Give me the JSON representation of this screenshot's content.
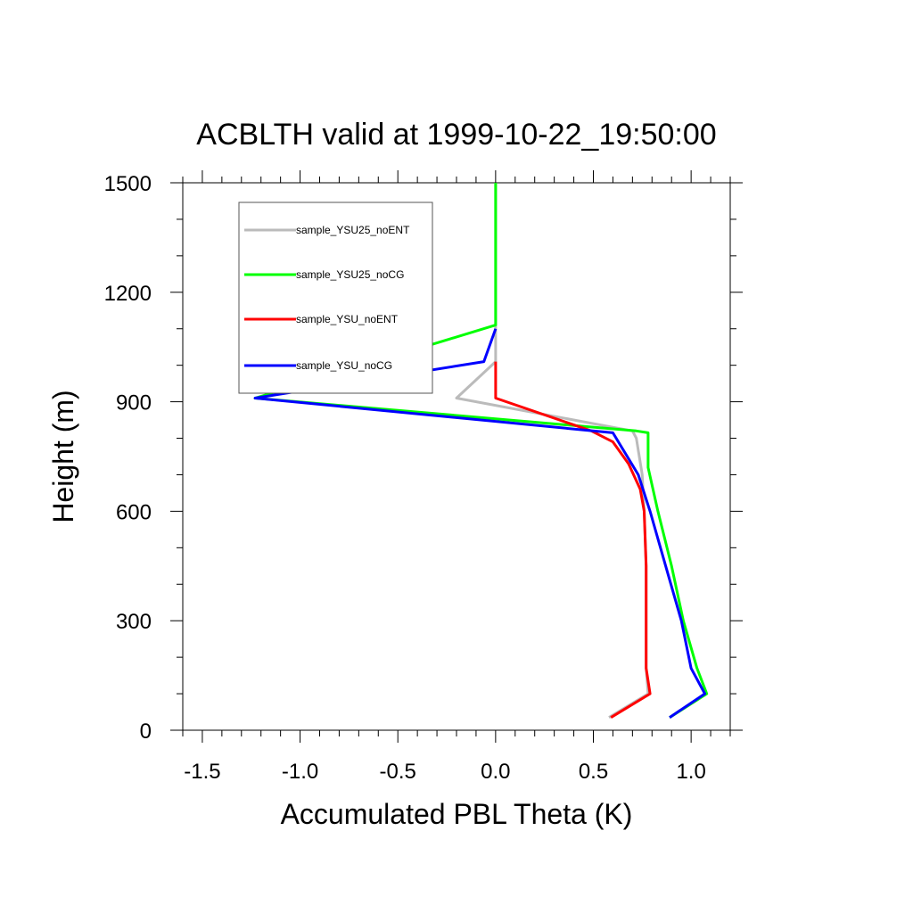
{
  "chart_data": {
    "type": "line",
    "title": "ACBLTH valid at 1999-10-22_19:50:00",
    "xlabel": "Accumulated PBL Theta (K)",
    "ylabel": "Height (m)",
    "xlim": [
      -1.6,
      1.2
    ],
    "ylim": [
      0,
      1500
    ],
    "xticks": [
      -1.5,
      -1.0,
      -0.5,
      0.0,
      0.5,
      1.0
    ],
    "xtick_labels": [
      "-1.5",
      "-1.0",
      "-0.5",
      "0.0",
      "0.5",
      "1.0"
    ],
    "yticks": [
      0,
      300,
      600,
      900,
      1200,
      1500
    ],
    "ytick_labels": [
      "0",
      "300",
      "600",
      "900",
      "1200",
      "1500"
    ],
    "grid": false,
    "legend_position": "top-left",
    "series": [
      {
        "name": "sample_YSU25_noENT",
        "color": "#bbbbbb",
        "x": [
          0.58,
          0.78,
          0.77,
          0.77,
          0.77,
          0.76,
          0.75,
          0.72,
          0.7,
          -0.2,
          0.0,
          0.0,
          0.0
        ],
        "y": [
          35,
          100,
          170,
          300,
          450,
          600,
          700,
          800,
          820,
          910,
          1010,
          1100,
          1500
        ]
      },
      {
        "name": "sample_YSU25_noCG",
        "color": "#00ff00",
        "x": [
          0.89,
          1.08,
          1.03,
          0.96,
          0.9,
          0.83,
          0.78,
          0.78,
          0.72,
          -1.23,
          0.0,
          0.0,
          0.0
        ],
        "y": [
          35,
          100,
          170,
          300,
          450,
          600,
          720,
          815,
          820,
          910,
          1110,
          1200,
          1500
        ]
      },
      {
        "name": "sample_YSU_noENT",
        "color": "#ff0000",
        "x": [
          0.59,
          0.79,
          0.77,
          0.77,
          0.77,
          0.76,
          0.74,
          0.68,
          0.6,
          0.49,
          0.0,
          0.0
        ],
        "y": [
          35,
          100,
          170,
          300,
          450,
          600,
          660,
          730,
          790,
          820,
          910,
          1010
        ]
      },
      {
        "name": "sample_YSU_noCG",
        "color": "#0000ff",
        "x": [
          0.89,
          1.07,
          1.0,
          0.95,
          0.87,
          0.79,
          0.73,
          0.6,
          -1.23,
          -0.06,
          0.0
        ],
        "y": [
          35,
          100,
          170,
          300,
          450,
          600,
          700,
          815,
          910,
          1010,
          1100
        ]
      }
    ]
  }
}
